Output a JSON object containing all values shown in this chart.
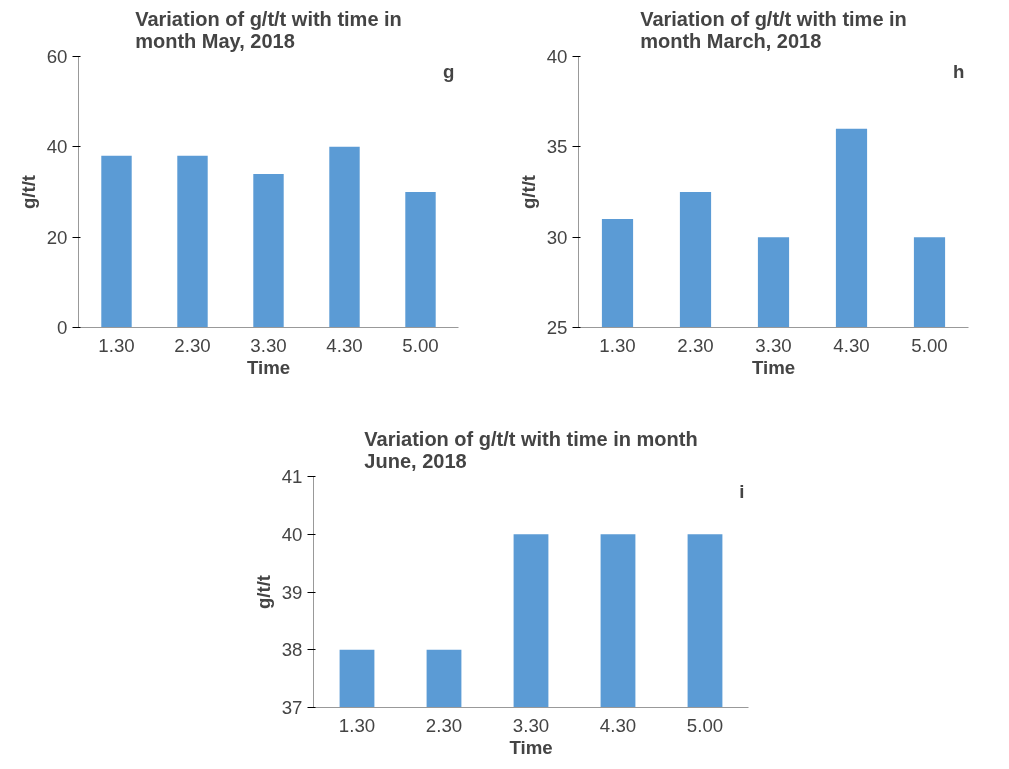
{
  "chart_data": [
    {
      "type": "bar",
      "title": "Variation of g/t/t with time in month May, 2018",
      "xlabel": "Time",
      "ylabel": "g/t/t",
      "categories": [
        "1.30",
        "2.30",
        "3.30",
        "4.30",
        "5.00"
      ],
      "values": [
        38,
        38,
        34,
        40,
        30
      ],
      "color": "#5b9bd5",
      "ylim": [
        0,
        60
      ],
      "yticks": [
        0,
        20,
        40,
        60
      ],
      "grid": false,
      "annotations": [
        "g"
      ]
    },
    {
      "type": "bar",
      "title": "Variation of g/t/t with time in month March, 2018",
      "xlabel": "Time",
      "ylabel": "g/t/t",
      "categories": [
        "1.30",
        "2.30",
        "3.30",
        "4.30",
        "5.00"
      ],
      "values": [
        31,
        32.5,
        30,
        36,
        30
      ],
      "color": "#5b9bd5",
      "ylim": [
        25,
        40
      ],
      "yticks": [
        25,
        30,
        35,
        40
      ],
      "grid": false,
      "annotations": [
        "h"
      ]
    },
    {
      "type": "bar",
      "title": "Variation of g/t/t with time in month June, 2018",
      "xlabel": "Time",
      "ylabel": "g/t/t",
      "categories": [
        "1.30",
        "2.30",
        "3.30",
        "4.30",
        "5.00"
      ],
      "values": [
        38,
        38,
        40,
        40,
        40
      ],
      "color": "#5b9bd5",
      "ylim": [
        37,
        41
      ],
      "yticks": [
        37,
        38,
        39,
        40,
        41
      ],
      "grid": false,
      "annotations": [
        "i"
      ]
    }
  ]
}
